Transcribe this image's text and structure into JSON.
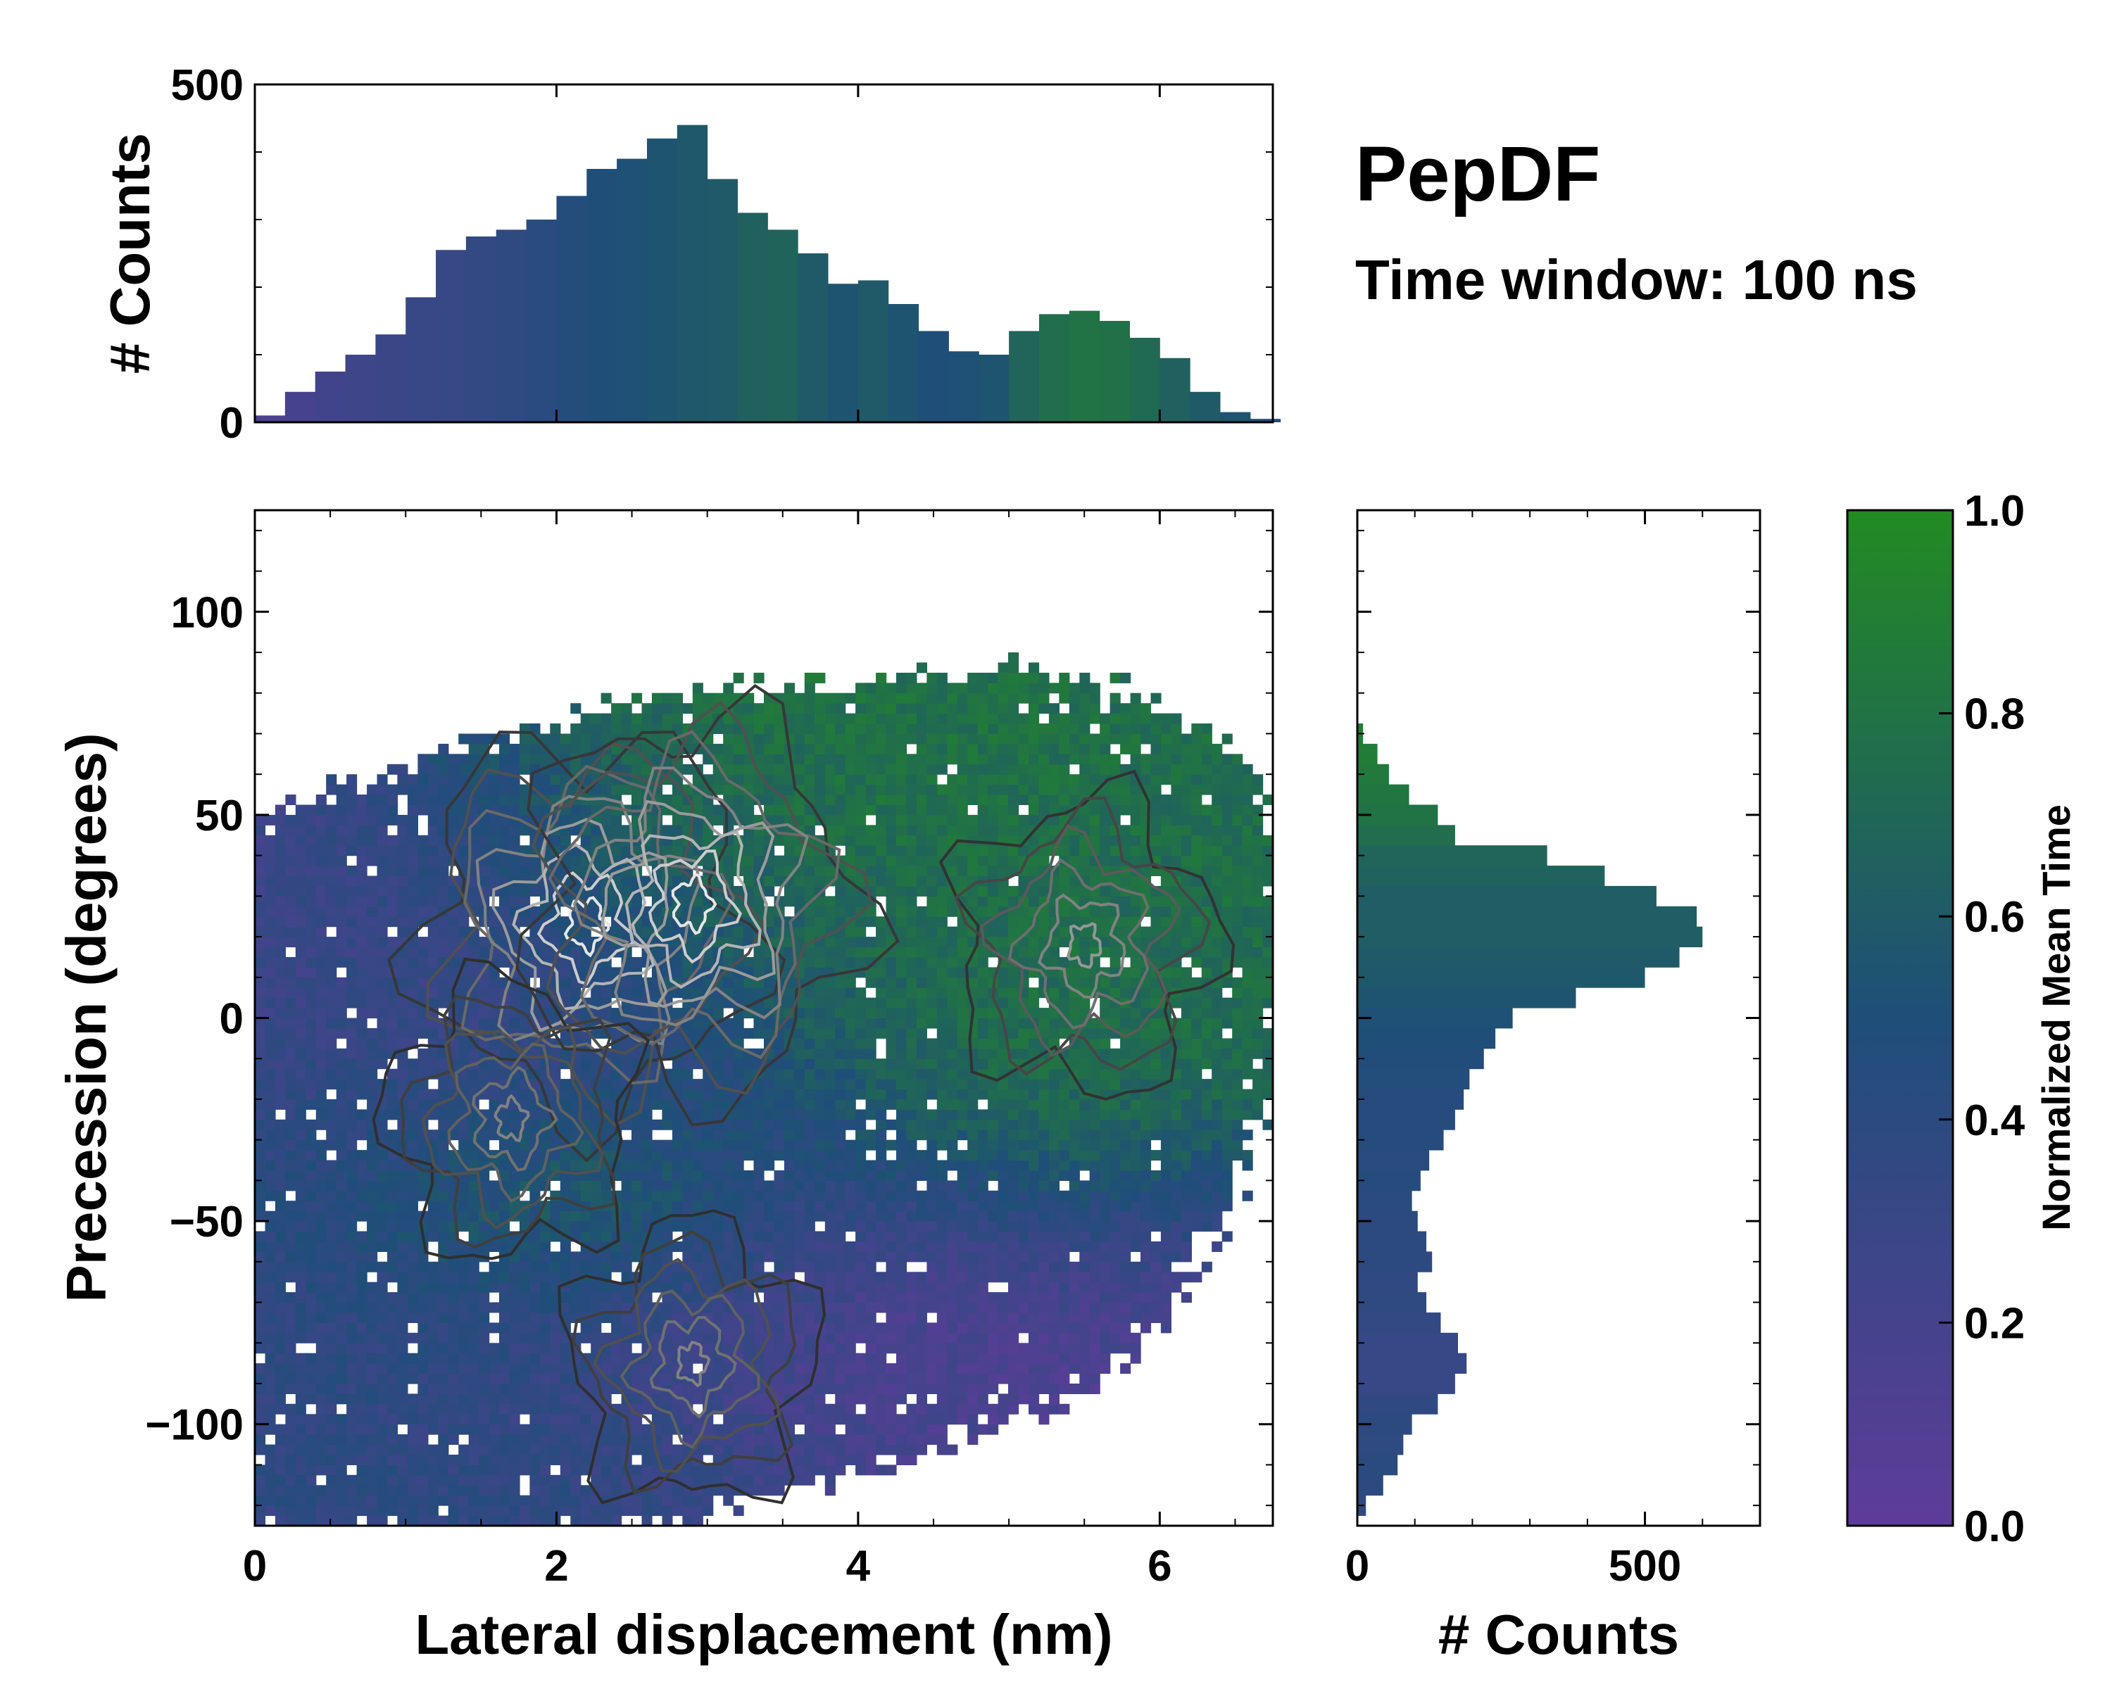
{
  "annotation": {
    "title": "PepDF",
    "subtitle": "Time window: 100 ns"
  },
  "colors": {
    "low": "#5e3c99",
    "mid": "#1f4e79",
    "high": "#228b22"
  },
  "chart_data": [
    {
      "id": "top-histogram",
      "type": "bar",
      "title": "",
      "xlabel": "",
      "ylabel": "# Counts",
      "xlim": [
        0,
        6.75
      ],
      "ylim": [
        0,
        500
      ],
      "yticks": [
        {
          "v": 0,
          "label": "0"
        },
        {
          "v": 500,
          "label": "500"
        }
      ],
      "bins_x_center": [
        0.1,
        0.3,
        0.5,
        0.7,
        0.9,
        1.1,
        1.3,
        1.5,
        1.7,
        1.9,
        2.1,
        2.3,
        2.5,
        2.7,
        2.9,
        3.1,
        3.3,
        3.5,
        3.7,
        3.9,
        4.1,
        4.3,
        4.5,
        4.7,
        4.9,
        5.1,
        5.3,
        5.5,
        5.7,
        5.9,
        6.1,
        6.3,
        6.5,
        6.7
      ],
      "values": [
        10,
        45,
        75,
        100,
        130,
        185,
        255,
        275,
        285,
        300,
        335,
        375,
        390,
        420,
        440,
        360,
        310,
        285,
        250,
        205,
        210,
        175,
        135,
        105,
        100,
        135,
        160,
        165,
        150,
        125,
        95,
        45,
        15,
        5
      ],
      "color_values": [
        0.15,
        0.18,
        0.22,
        0.25,
        0.28,
        0.3,
        0.32,
        0.35,
        0.38,
        0.42,
        0.46,
        0.5,
        0.52,
        0.55,
        0.58,
        0.6,
        0.65,
        0.67,
        0.6,
        0.55,
        0.6,
        0.55,
        0.5,
        0.52,
        0.55,
        0.68,
        0.75,
        0.8,
        0.78,
        0.72,
        0.65,
        0.6,
        0.55,
        0.5
      ]
    },
    {
      "id": "joint-heatmap",
      "type": "heatmap",
      "title": "",
      "xlabel": "Lateral displacement (nm)",
      "ylabel": "Precession (degrees)",
      "xlim": [
        0,
        6.75
      ],
      "ylim": [
        -125,
        125
      ],
      "xticks": [
        {
          "v": 0,
          "label": "0"
        },
        {
          "v": 2,
          "label": "2"
        },
        {
          "v": 4,
          "label": "4"
        },
        {
          "v": 6,
          "label": "6"
        }
      ],
      "yticks": [
        {
          "v": 100,
          "label": "100"
        },
        {
          "v": 50,
          "label": "50"
        },
        {
          "v": 0,
          "label": "0"
        },
        {
          "v": -50,
          "label": "−50"
        },
        {
          "v": -100,
          "label": "−100"
        }
      ],
      "regions": [
        {
          "x": 1.6,
          "y": 15,
          "sx": 1.5,
          "sy": 28,
          "t": 0.25,
          "w": 1.0
        },
        {
          "x": 3.4,
          "y": 35,
          "sx": 1.2,
          "sy": 28,
          "t": 0.85,
          "w": 1.0
        },
        {
          "x": 5.4,
          "y": 25,
          "sx": 1.0,
          "sy": 38,
          "t": 0.75,
          "w": 0.9
        },
        {
          "x": 4.9,
          "y": -20,
          "sx": 0.8,
          "sy": 20,
          "t": 0.9,
          "w": 0.7
        },
        {
          "x": 2.4,
          "y": -45,
          "sx": 1.0,
          "sy": 18,
          "t": 0.85,
          "w": 0.7
        },
        {
          "x": 4.0,
          "y": -60,
          "sx": 1.4,
          "sy": 30,
          "t": 0.12,
          "w": 0.9
        },
        {
          "x": 1.3,
          "y": -95,
          "sx": 1.4,
          "sy": 25,
          "t": 0.38,
          "w": 0.9
        },
        {
          "x": 0.9,
          "y": -25,
          "sx": 0.8,
          "sy": 30,
          "t": 0.4,
          "w": 0.6
        }
      ],
      "density_peaks": [
        {
          "x": 2.2,
          "y": 23,
          "level": 1.0
        },
        {
          "x": 2.9,
          "y": 28,
          "level": 1.0
        },
        {
          "x": 5.5,
          "y": 18,
          "level": 0.6
        },
        {
          "x": 2.9,
          "y": -85,
          "level": 0.5
        },
        {
          "x": 1.7,
          "y": -25,
          "level": 0.5
        }
      ]
    },
    {
      "id": "right-histogram",
      "type": "bar",
      "orientation": "horizontal",
      "title": "",
      "xlabel": "# Counts",
      "ylabel": "",
      "xlim": [
        0,
        700
      ],
      "ylim": [
        -125,
        125
      ],
      "xticks": [
        {
          "v": 0,
          "label": "0"
        },
        {
          "v": 500,
          "label": "500"
        }
      ],
      "bins_y_center": [
        -120,
        -115,
        -110,
        -105,
        -100,
        -95,
        -90,
        -85,
        -80,
        -75,
        -70,
        -65,
        -60,
        -55,
        -50,
        -45,
        -40,
        -35,
        -30,
        -25,
        -20,
        -15,
        -10,
        -5,
        0,
        5,
        10,
        15,
        20,
        25,
        30,
        35,
        40,
        45,
        50,
        55,
        60,
        65,
        70
      ],
      "values": [
        15,
        45,
        70,
        80,
        95,
        140,
        170,
        190,
        175,
        145,
        120,
        105,
        130,
        120,
        105,
        95,
        110,
        125,
        150,
        170,
        185,
        195,
        220,
        240,
        270,
        380,
        500,
        560,
        600,
        590,
        520,
        430,
        330,
        170,
        140,
        90,
        55,
        35,
        10
      ],
      "color_values": [
        0.4,
        0.4,
        0.42,
        0.38,
        0.4,
        0.36,
        0.3,
        0.3,
        0.32,
        0.35,
        0.38,
        0.36,
        0.4,
        0.4,
        0.4,
        0.42,
        0.45,
        0.42,
        0.45,
        0.43,
        0.45,
        0.47,
        0.48,
        0.5,
        0.52,
        0.55,
        0.58,
        0.6,
        0.62,
        0.62,
        0.62,
        0.66,
        0.68,
        0.75,
        0.8,
        0.82,
        0.85,
        0.88,
        0.9
      ]
    },
    {
      "id": "colorbar",
      "type": "colorbar",
      "label": "Normalized Mean Time",
      "ylim": [
        0,
        1
      ],
      "ticks": [
        {
          "v": 0,
          "label": "0.0"
        },
        {
          "v": 0.2,
          "label": "0.2"
        },
        {
          "v": 0.4,
          "label": "0.4"
        },
        {
          "v": 0.6,
          "label": "0.6"
        },
        {
          "v": 0.8,
          "label": "0.8"
        },
        {
          "v": 1.0,
          "label": "1.0"
        }
      ]
    }
  ]
}
